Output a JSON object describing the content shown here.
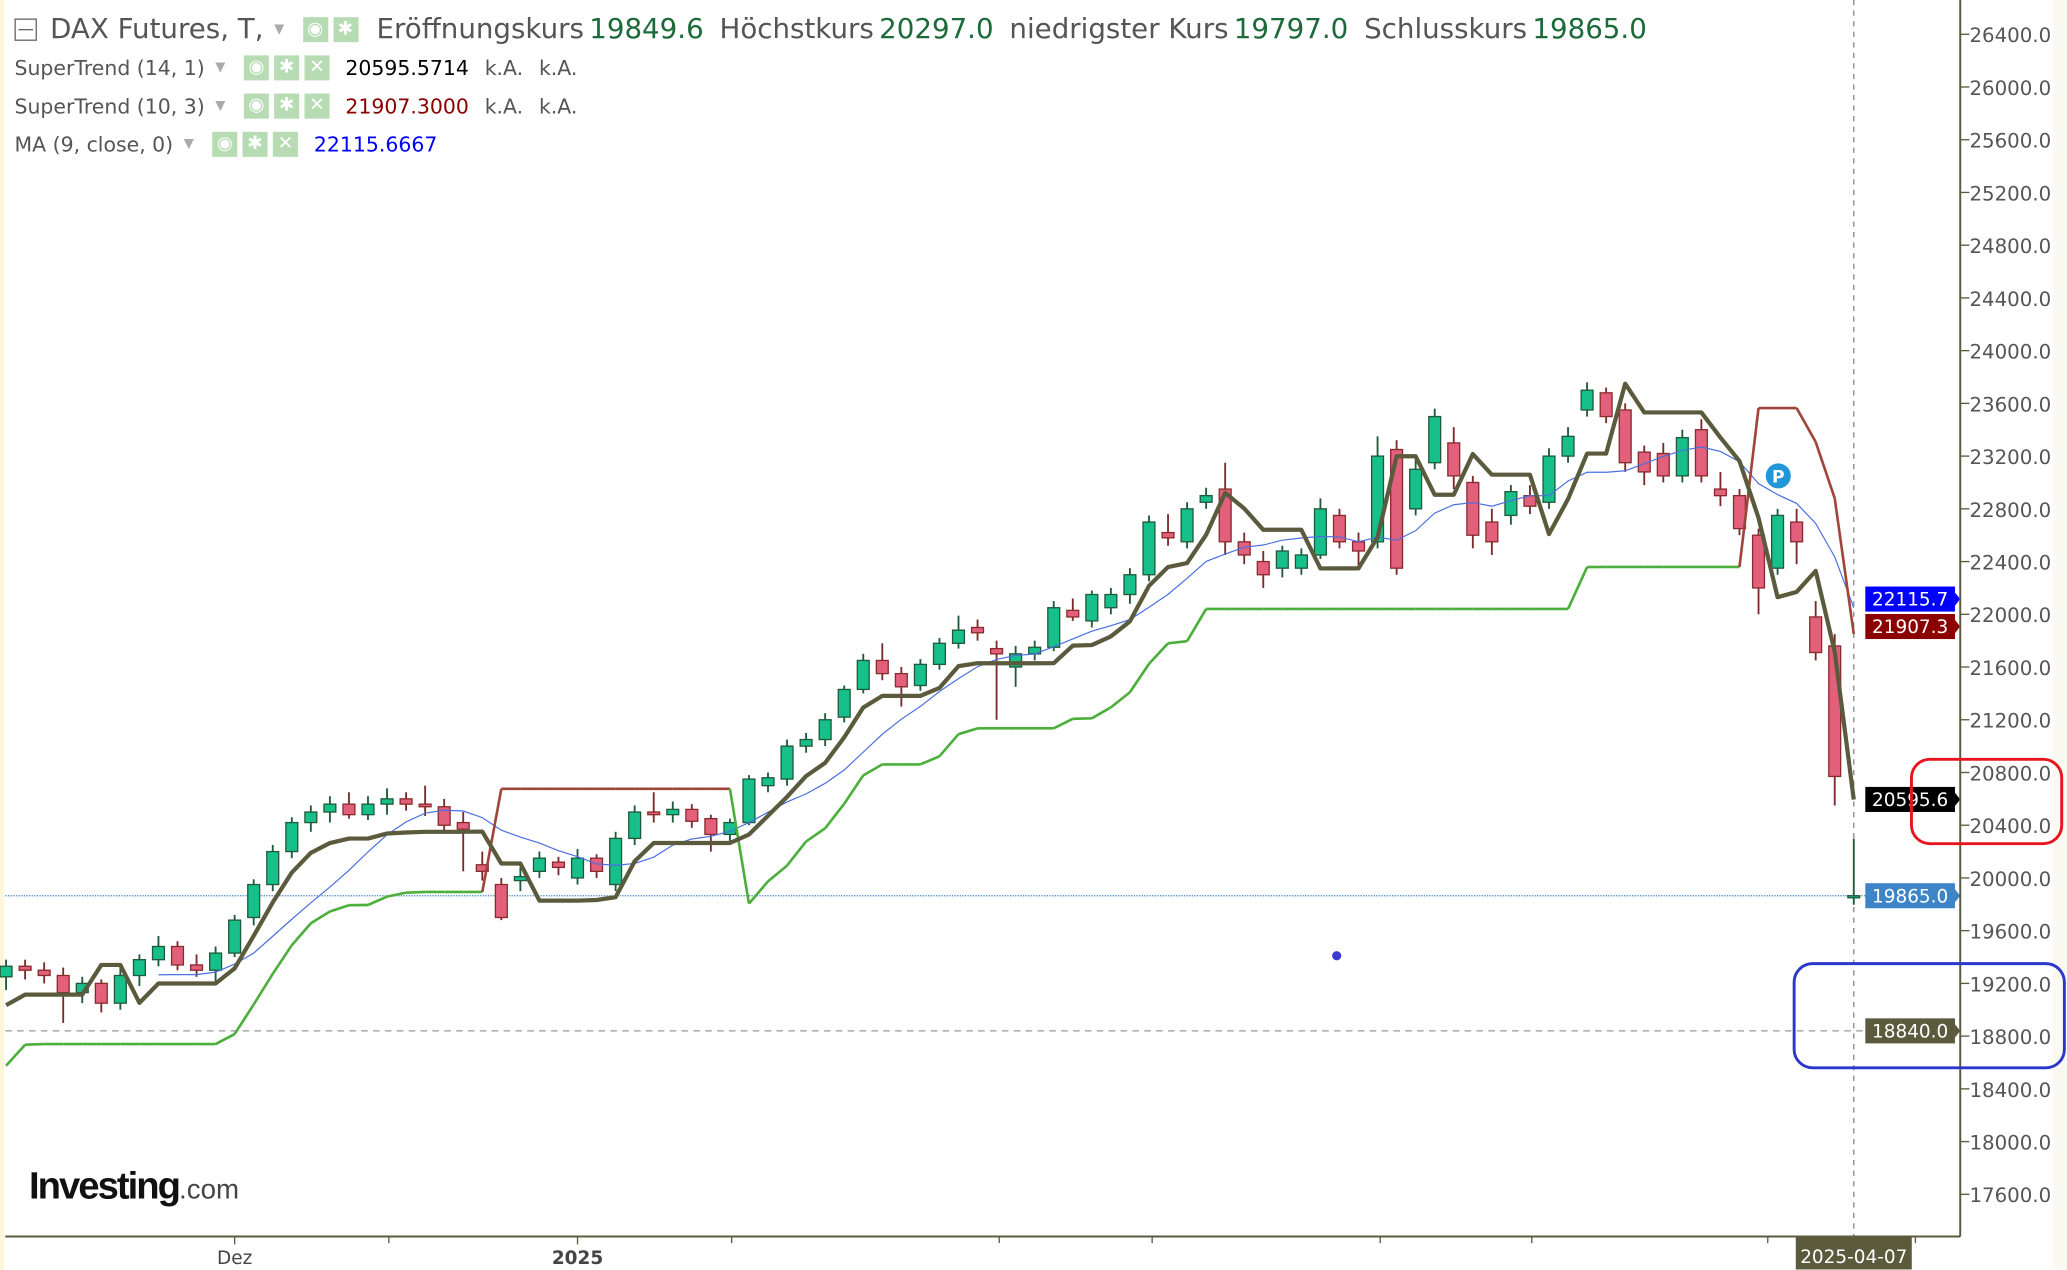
{
  "header": {
    "title": "DAX Futures, T,",
    "open_label": "Eröffnungskurs",
    "open": "19849.6",
    "high_label": "Höchstkurs",
    "high": "20297.0",
    "low_label": "niedrigster Kurs",
    "low": "19797.0",
    "close_label": "Schlusskurs",
    "close": "19865.0"
  },
  "indicators": [
    {
      "name": "SuperTrend (14, 1)",
      "value": "20595.5714",
      "v2": "k.A.",
      "v3": "k.A.",
      "color": "#000000"
    },
    {
      "name": "SuperTrend (10, 3)",
      "value": "21907.3000",
      "v2": "k.A.",
      "v3": "k.A.",
      "color": "#8b0000"
    },
    {
      "name": "MA (9, close, 0)",
      "value": "22115.6667",
      "color": "#0000ff"
    }
  ],
  "icons": [
    "eye-icon",
    "gear-icon",
    "close-icon"
  ],
  "logo": "Investing.com",
  "chart_data": {
    "type": "candlestick",
    "title": "DAX Futures, T,",
    "y_ticks": [
      26400,
      26000,
      25600,
      25200,
      24800,
      24400,
      24000,
      23600,
      23200,
      22800,
      22400,
      22000,
      21600,
      21200,
      20800,
      20400,
      20000,
      19600,
      19200,
      18800,
      18400,
      18000,
      17600
    ],
    "ylim": [
      17200,
      26700
    ],
    "x_labels": [
      {
        "date": "2024-12-02",
        "text": "Dez"
      },
      {
        "date": "2025-01-02",
        "text": "2025"
      }
    ],
    "cursor_date": "2025-04-07",
    "price_badges": [
      {
        "text": "22115.7",
        "value": 22115.7,
        "color": "#0000ff"
      },
      {
        "text": "21907.3",
        "value": 21907.3,
        "color": "#8b0000"
      },
      {
        "text": "20595.6",
        "value": 20595.6,
        "color": "#000000"
      },
      {
        "text": "19865.0",
        "value": 19865.0,
        "color": "#3d85c6"
      },
      {
        "text": "18840.0",
        "value": 18840.0,
        "color": "#5b5a3c"
      }
    ],
    "hlines": [
      {
        "value": 19865.0,
        "color": "#3d85c6",
        "style": "dotted"
      },
      {
        "value": 18840.0,
        "color": "#999999",
        "style": "dashed"
      }
    ],
    "colors": {
      "up": "#17c08a",
      "down": "#e2607c",
      "st14": "#5b5a3c",
      "st10_up": "#4caf3c",
      "st10_down": "#a0453a",
      "ma": "#4a6fe0"
    },
    "ohlc": [
      [
        "2024-11-14",
        19250,
        19380,
        19150,
        19330
      ],
      [
        "2024-11-15",
        19330,
        19380,
        19230,
        19300
      ],
      [
        "2024-11-18",
        19300,
        19360,
        19200,
        19260
      ],
      [
        "2024-11-19",
        19260,
        19320,
        18900,
        19130
      ],
      [
        "2024-11-20",
        19130,
        19250,
        19050,
        19200
      ],
      [
        "2024-11-21",
        19200,
        19230,
        18980,
        19050
      ],
      [
        "2024-11-22",
        19050,
        19330,
        19000,
        19260
      ],
      [
        "2024-11-25",
        19260,
        19420,
        19180,
        19380
      ],
      [
        "2024-11-26",
        19380,
        19560,
        19330,
        19480
      ],
      [
        "2024-11-27",
        19480,
        19520,
        19300,
        19340
      ],
      [
        "2024-11-28",
        19340,
        19420,
        19250,
        19300
      ],
      [
        "2024-11-29",
        19300,
        19480,
        19200,
        19430
      ],
      [
        "2024-12-02",
        19430,
        19720,
        19400,
        19680
      ],
      [
        "2024-12-03",
        19700,
        19990,
        19640,
        19950
      ],
      [
        "2024-12-04",
        19950,
        20250,
        19900,
        20200
      ],
      [
        "2024-12-05",
        20200,
        20460,
        20150,
        20420
      ],
      [
        "2024-12-06",
        20420,
        20550,
        20350,
        20500
      ],
      [
        "2024-12-09",
        20500,
        20620,
        20420,
        20560
      ],
      [
        "2024-12-10",
        20560,
        20650,
        20450,
        20480
      ],
      [
        "2024-12-11",
        20480,
        20620,
        20440,
        20560
      ],
      [
        "2024-12-12",
        20560,
        20680,
        20480,
        20600
      ],
      [
        "2024-12-13",
        20600,
        20650,
        20510,
        20560
      ],
      [
        "2024-12-16",
        20560,
        20700,
        20470,
        20540
      ],
      [
        "2024-12-17",
        20540,
        20600,
        20340,
        20400
      ],
      [
        "2024-12-18",
        20420,
        20500,
        20050,
        20370
      ],
      [
        "2024-12-19",
        20100,
        20200,
        19980,
        20050
      ],
      [
        "2024-12-20",
        19950,
        20000,
        19680,
        19700
      ],
      [
        "2024-12-23",
        19980,
        20080,
        19900,
        20010
      ],
      [
        "2024-12-27",
        20050,
        20200,
        20000,
        20150
      ],
      [
        "2024-12-30",
        20120,
        20160,
        20020,
        20080
      ],
      [
        "2025-01-02",
        20000,
        20220,
        19950,
        20150
      ],
      [
        "2025-01-03",
        20150,
        20180,
        20000,
        20050
      ],
      [
        "2025-01-06",
        19950,
        20350,
        19900,
        20300
      ],
      [
        "2025-01-07",
        20300,
        20550,
        20250,
        20500
      ],
      [
        "2025-01-08",
        20500,
        20650,
        20420,
        20480
      ],
      [
        "2025-01-09",
        20480,
        20580,
        20420,
        20520
      ],
      [
        "2025-01-10",
        20520,
        20560,
        20380,
        20430
      ],
      [
        "2025-01-13",
        20450,
        20480,
        20200,
        20330
      ],
      [
        "2025-01-14",
        20330,
        20450,
        20280,
        20420
      ],
      [
        "2025-01-15",
        20420,
        20780,
        20400,
        20750
      ],
      [
        "2025-01-16",
        20700,
        20800,
        20650,
        20760
      ],
      [
        "2025-01-17",
        20750,
        21050,
        20700,
        21000
      ],
      [
        "2025-01-20",
        21000,
        21100,
        20950,
        21050
      ],
      [
        "2025-01-21",
        21050,
        21250,
        21000,
        21200
      ],
      [
        "2025-01-22",
        21220,
        21460,
        21180,
        21430
      ],
      [
        "2025-01-23",
        21430,
        21700,
        21400,
        21650
      ],
      [
        "2025-01-24",
        21650,
        21780,
        21500,
        21550
      ],
      [
        "2025-01-27",
        21550,
        21600,
        21300,
        21450
      ],
      [
        "2025-01-28",
        21460,
        21660,
        21420,
        21620
      ],
      [
        "2025-01-29",
        21620,
        21820,
        21580,
        21780
      ],
      [
        "2025-01-30",
        21780,
        21990,
        21740,
        21880
      ],
      [
        "2025-01-31",
        21900,
        21960,
        21800,
        21860
      ],
      [
        "2025-02-03",
        21740,
        21800,
        21200,
        21700
      ],
      [
        "2025-02-04",
        21600,
        21760,
        21450,
        21700
      ],
      [
        "2025-02-05",
        21700,
        21800,
        21650,
        21750
      ],
      [
        "2025-02-06",
        21750,
        22100,
        21720,
        22050
      ],
      [
        "2025-02-07",
        22030,
        22120,
        21950,
        21980
      ],
      [
        "2025-02-10",
        21950,
        22180,
        21900,
        22150
      ],
      [
        "2025-02-11",
        22050,
        22200,
        22000,
        22150
      ],
      [
        "2025-02-12",
        22150,
        22350,
        22080,
        22300
      ],
      [
        "2025-02-13",
        22300,
        22750,
        22250,
        22700
      ],
      [
        "2025-02-14",
        22620,
        22760,
        22520,
        22580
      ],
      [
        "2025-02-17",
        22550,
        22850,
        22500,
        22800
      ],
      [
        "2025-02-18",
        22850,
        22960,
        22800,
        22900
      ],
      [
        "2025-02-19",
        22950,
        23150,
        22450,
        22550
      ],
      [
        "2025-02-20",
        22550,
        22620,
        22380,
        22450
      ],
      [
        "2025-02-21",
        22400,
        22480,
        22200,
        22300
      ],
      [
        "2025-02-24",
        22350,
        22520,
        22280,
        22480
      ],
      [
        "2025-02-25",
        22350,
        22500,
        22300,
        22450
      ],
      [
        "2025-02-26",
        22450,
        22880,
        22420,
        22800
      ],
      [
        "2025-02-27",
        22750,
        22800,
        22500,
        22550
      ],
      [
        "2025-02-28",
        22550,
        22620,
        22350,
        22480
      ],
      [
        "2025-03-03",
        22550,
        23350,
        22500,
        23200
      ],
      [
        "2025-03-04",
        23250,
        23320,
        22300,
        22350
      ],
      [
        "2025-03-05",
        22800,
        23180,
        22750,
        23100
      ],
      [
        "2025-03-06",
        23150,
        23560,
        23100,
        23500
      ],
      [
        "2025-03-07",
        23300,
        23420,
        22950,
        23050
      ],
      [
        "2025-03-10",
        23000,
        23050,
        22500,
        22600
      ],
      [
        "2025-03-11",
        22700,
        22800,
        22450,
        22550
      ],
      [
        "2025-03-12",
        22750,
        22980,
        22680,
        22930
      ],
      [
        "2025-03-13",
        22900,
        22980,
        22760,
        22820
      ],
      [
        "2025-03-14",
        22850,
        23260,
        22800,
        23200
      ],
      [
        "2025-03-17",
        23200,
        23420,
        23150,
        23350
      ],
      [
        "2025-03-18",
        23550,
        23760,
        23500,
        23700
      ],
      [
        "2025-03-19",
        23680,
        23720,
        23450,
        23500
      ],
      [
        "2025-03-20",
        23550,
        23600,
        23080,
        23150
      ],
      [
        "2025-03-21",
        23230,
        23280,
        22980,
        23080
      ],
      [
        "2025-03-24",
        23220,
        23300,
        23000,
        23050
      ],
      [
        "2025-03-25",
        23050,
        23400,
        23000,
        23340
      ],
      [
        "2025-03-26",
        23400,
        23480,
        23000,
        23050
      ],
      [
        "2025-03-27",
        22950,
        23080,
        22820,
        22900
      ],
      [
        "2025-03-28",
        22900,
        22950,
        22600,
        22650
      ],
      [
        "2025-03-31",
        22600,
        22650,
        22000,
        22200
      ],
      [
        "2025-04-01",
        22350,
        22800,
        22300,
        22750
      ],
      [
        "2025-04-02",
        22700,
        22800,
        22380,
        22550
      ],
      [
        "2025-04-03",
        21980,
        22100,
        21650,
        21710
      ],
      [
        "2025-04-04",
        21760,
        21850,
        20550,
        20770
      ],
      [
        "2025-04-07",
        19849.6,
        20297,
        19797,
        19865
      ]
    ]
  }
}
